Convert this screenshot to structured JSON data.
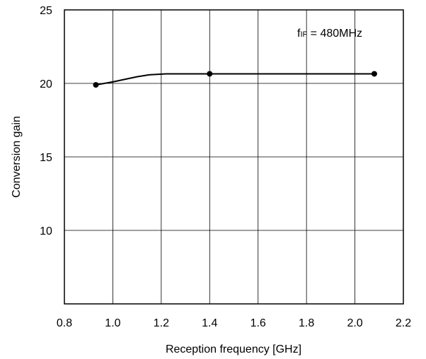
{
  "chart_data": {
    "type": "line",
    "title": "",
    "xlabel": "Reception frequency [GHz]",
    "ylabel": "Conversion gain",
    "xlim": [
      0.8,
      2.2
    ],
    "ylim": [
      5,
      25
    ],
    "x_ticks": [
      "0.8",
      "1.0",
      "1.2",
      "1.4",
      "1.6",
      "1.8",
      "2.0",
      "2.2"
    ],
    "y_ticks": [
      "10",
      "15",
      "20",
      "25"
    ],
    "grid": true,
    "annotation": {
      "main": "f",
      "sub": "IF",
      "rest": " = 480MHz"
    },
    "series": [
      {
        "curve": [
          {
            "x": 0.93,
            "y": 19.9
          },
          {
            "x": 1.0,
            "y": 20.1
          },
          {
            "x": 1.1,
            "y": 20.45
          },
          {
            "x": 1.15,
            "y": 20.58
          },
          {
            "x": 1.22,
            "y": 20.65
          },
          {
            "x": 1.4,
            "y": 20.65
          },
          {
            "x": 2.08,
            "y": 20.65
          }
        ],
        "markers": [
          {
            "x": 0.93,
            "y": 19.9
          },
          {
            "x": 1.4,
            "y": 20.65
          },
          {
            "x": 2.08,
            "y": 20.65
          }
        ]
      }
    ]
  }
}
